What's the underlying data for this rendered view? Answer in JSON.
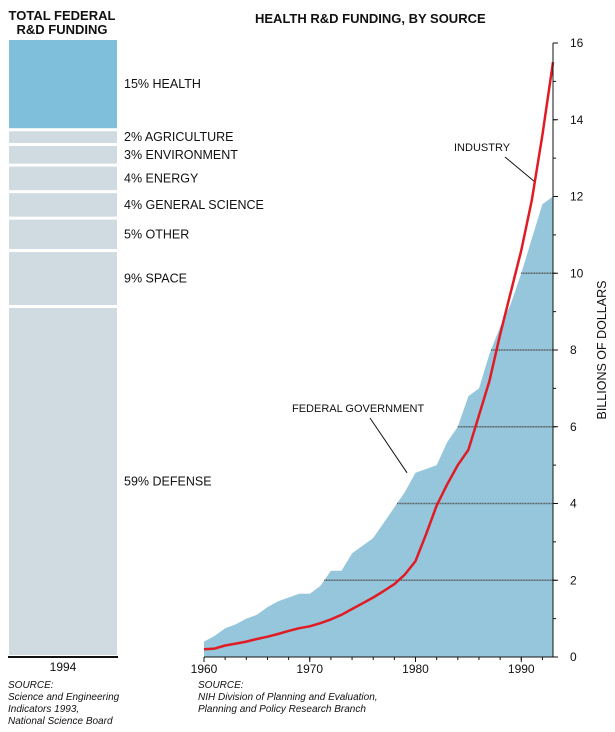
{
  "left_title": "TOTAL FEDERAL\nR&D FUNDING",
  "right_title": "HEALTH R&D FUNDING, BY SOURCE",
  "left_source": "SOURCE:\nScience and Engineering\nIndicators 1993,\nNational Science Board",
  "right_source": "SOURCE:\nNIH Division of Planning and Evaluation,\nPlanning and Policy Research Branch",
  "colors": {
    "federal": "#95c6dc",
    "industry": "#e01b23",
    "gray_block": "#cfdbe1",
    "health_block": "#80bfdc"
  },
  "chart_data": [
    {
      "type": "stacked-bar",
      "title": "TOTAL FEDERAL R&D FUNDING",
      "category": "1994",
      "segments": [
        {
          "label": "15% HEALTH",
          "percent": 15
        },
        {
          "label": "2% AGRICULTURE",
          "percent": 2
        },
        {
          "label": "3% ENVIRONMENT",
          "percent": 3
        },
        {
          "label": "4% ENERGY",
          "percent": 4
        },
        {
          "label": "4% GENERAL SCIENCE",
          "percent": 4
        },
        {
          "label": "5% OTHER",
          "percent": 5
        },
        {
          "label": "9% SPACE",
          "percent": 9
        },
        {
          "label": "59% DEFENSE",
          "percent": 59
        }
      ]
    },
    {
      "type": "area-line",
      "title": "HEALTH R&D FUNDING, BY SOURCE",
      "ylabel": "BILLIONS OF DOLLARS",
      "xlim": [
        1960,
        1993
      ],
      "ylim": [
        0,
        16
      ],
      "x_ticks": [
        "1960",
        "1970",
        "1980",
        "1990"
      ],
      "y_ticks": [
        "0",
        "2",
        "4",
        "6",
        "8",
        "10",
        "12",
        "14",
        "16"
      ],
      "series": [
        {
          "name": "FEDERAL GOVERNMENT",
          "style": "area",
          "x": [
            1960,
            1961,
            1962,
            1963,
            1964,
            1965,
            1966,
            1967,
            1968,
            1969,
            1970,
            1971,
            1972,
            1973,
            1974,
            1975,
            1976,
            1977,
            1978,
            1979,
            1980,
            1981,
            1982,
            1983,
            1984,
            1985,
            1986,
            1987,
            1988,
            1989,
            1990,
            1991,
            1992,
            1993
          ],
          "y": [
            0.4,
            0.55,
            0.75,
            0.85,
            1.0,
            1.1,
            1.3,
            1.45,
            1.55,
            1.65,
            1.65,
            1.85,
            2.25,
            2.25,
            2.7,
            2.9,
            3.1,
            3.5,
            3.9,
            4.3,
            4.8,
            4.9,
            5.0,
            5.6,
            6.0,
            6.8,
            7.0,
            7.9,
            8.6,
            9.2,
            10.0,
            10.9,
            11.8,
            12.0
          ]
        },
        {
          "name": "INDUSTRY",
          "style": "line",
          "x": [
            1960,
            1961,
            1962,
            1963,
            1964,
            1965,
            1966,
            1967,
            1968,
            1969,
            1970,
            1971,
            1972,
            1973,
            1974,
            1975,
            1976,
            1977,
            1978,
            1979,
            1980,
            1981,
            1982,
            1983,
            1984,
            1985,
            1986,
            1987,
            1988,
            1989,
            1990,
            1991,
            1992,
            1993
          ],
          "y": [
            0.2,
            0.22,
            0.3,
            0.35,
            0.4,
            0.47,
            0.53,
            0.6,
            0.68,
            0.75,
            0.8,
            0.88,
            0.98,
            1.1,
            1.25,
            1.4,
            1.55,
            1.72,
            1.9,
            2.15,
            2.5,
            3.2,
            3.95,
            4.5,
            5.0,
            5.4,
            6.3,
            7.2,
            8.4,
            9.5,
            10.6,
            11.9,
            13.6,
            15.5
          ]
        }
      ],
      "annotations": [
        {
          "text": "INDUSTRY",
          "x": 1991.2,
          "y": 12.4
        },
        {
          "text": "FEDERAL GOVERNMENT",
          "x": 1979.2,
          "y": 4.8
        }
      ]
    }
  ]
}
